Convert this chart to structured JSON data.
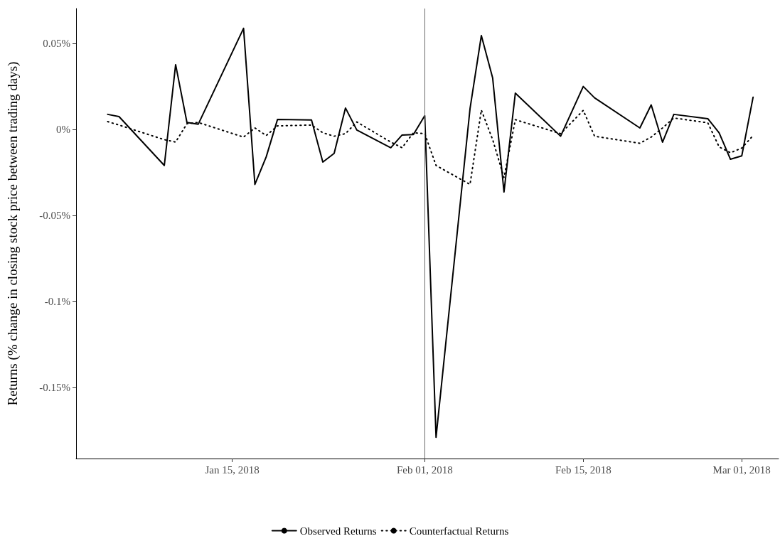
{
  "chart_data": {
    "type": "line",
    "ylabel": "Returns (% change in closing stock price between trading days)",
    "x": [
      "2018-01-04",
      "2018-01-05",
      "2018-01-09",
      "2018-01-10",
      "2018-01-11",
      "2018-01-12",
      "2018-01-16",
      "2018-01-17",
      "2018-01-18",
      "2018-01-19",
      "2018-01-22",
      "2018-01-23",
      "2018-01-24",
      "2018-01-25",
      "2018-01-26",
      "2018-01-29",
      "2018-01-30",
      "2018-01-31",
      "2018-02-01",
      "2018-02-02",
      "2018-02-05",
      "2018-02-06",
      "2018-02-07",
      "2018-02-08",
      "2018-02-09",
      "2018-02-13",
      "2018-02-15",
      "2018-02-16",
      "2018-02-20",
      "2018-02-21",
      "2018-02-22",
      "2018-02-23",
      "2018-02-26",
      "2018-02-27",
      "2018-02-28",
      "2018-03-01",
      "2018-03-02"
    ],
    "series": [
      {
        "name": "Observed Returns",
        "color": "#000000",
        "line_style": "solid",
        "values": [
          0.0087,
          0.0074,
          -0.021,
          0.0376,
          0.004,
          0.003,
          0.0587,
          -0.032,
          -0.016,
          0.0058,
          0.0054,
          -0.019,
          -0.014,
          0.0124,
          -0.0004,
          -0.0107,
          -0.0033,
          -0.003,
          0.0079,
          -0.179,
          0.012,
          0.0545,
          0.0298,
          -0.0364,
          0.021,
          -0.004,
          0.0249,
          0.0183,
          0.0008,
          0.0142,
          -0.0075,
          0.0087,
          0.0062,
          -0.002,
          -0.0174,
          -0.0154,
          0.0187
        ]
      },
      {
        "name": "Counterfactual Returns",
        "color": "#000000",
        "line_style": "dotted",
        "values": [
          0.0045,
          0.0025,
          -0.006,
          -0.0074,
          0.0033,
          0.004,
          -0.0045,
          0.0008,
          -0.0036,
          0.002,
          0.0025,
          -0.002,
          -0.004,
          -0.0025,
          0.0043,
          -0.0074,
          -0.0107,
          -0.002,
          -0.0025,
          -0.021,
          -0.032,
          0.0112,
          -0.006,
          -0.028,
          0.0056,
          -0.0025,
          0.011,
          -0.004,
          -0.0081,
          -0.0045,
          0.0008,
          0.0066,
          0.0038,
          -0.0102,
          -0.0136,
          -0.0109,
          -0.0036
        ]
      }
    ],
    "xlim": [
      "2018-01-01T05:00",
      "2018-03-04T06:00"
    ],
    "xticks": [
      {
        "value": "2018-01-15",
        "label": "Jan 15, 2018"
      },
      {
        "value": "2018-02-01",
        "label": "Feb 01, 2018"
      },
      {
        "value": "2018-02-15",
        "label": "Feb 15, 2018"
      },
      {
        "value": "2018-03-01",
        "label": "Mar 01, 2018"
      }
    ],
    "ylim": [
      -0.1913,
      0.0702
    ],
    "yticks": [
      {
        "value": -0.15,
        "label": "-0.15%"
      },
      {
        "value": -0.1,
        "label": "-0.1%"
      },
      {
        "value": -0.05,
        "label": "-0.05%"
      },
      {
        "value": 0,
        "label": "0%"
      },
      {
        "value": 0.05,
        "label": "0.05%"
      }
    ],
    "ref_lines": [
      {
        "axis": "x",
        "value": "2018-02-01",
        "color": "#6b6b6b"
      }
    ],
    "grid": false,
    "legend": "bottom",
    "marker": "none"
  }
}
